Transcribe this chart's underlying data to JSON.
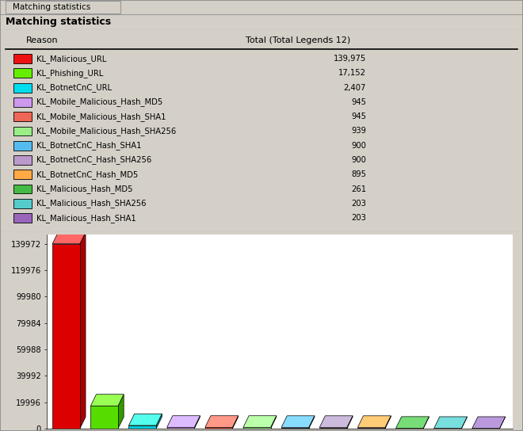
{
  "title": "Matching statistics",
  "tab_title": "Matching statistics",
  "panel_title": "Matching statistics",
  "table_header": [
    "Reason",
    "Total (Total Legends 12)"
  ],
  "categories": [
    "KL_Malicious_URL",
    "KL_Phishing_URL",
    "KL_BotnetCnC_URL",
    "KL_Mobile_Malicious_Hash_MD5",
    "KL_Mobile_Malicious_Hash_SHA1",
    "KL_Mobile_Malicious_Hash_SHA256",
    "KL_BotnetCnC_Hash_SHA1",
    "KL_BotnetCnC_Hash_SHA256",
    "KL_BotnetCnC_Hash_MD5",
    "KL_Malicious_Hash_MD5",
    "KL_Malicious_Hash_SHA256",
    "KL_Malicious_Hash_SHA1"
  ],
  "values": [
    139975,
    17152,
    2407,
    945,
    945,
    939,
    900,
    900,
    895,
    261,
    203,
    203
  ],
  "legend_colors": [
    "#EE1111",
    "#66EE00",
    "#00DDEE",
    "#CC99EE",
    "#EE6655",
    "#99EE88",
    "#55BBEE",
    "#BB99CC",
    "#FFAA44",
    "#44BB44",
    "#55CCCC",
    "#9966BB"
  ],
  "bar_colors_front": [
    "#DD0000",
    "#55DD00",
    "#00CCDD",
    "#BB88DD",
    "#DD5544",
    "#88DD77",
    "#44AADD",
    "#AA88BB",
    "#EE9933",
    "#33AA33",
    "#44BBBB",
    "#8855AA"
  ],
  "bar_colors_top": [
    "#FF6666",
    "#99FF55",
    "#55FFEE",
    "#DDBBFF",
    "#FF9988",
    "#BBFFAA",
    "#88DDFF",
    "#CCBBDD",
    "#FFCC77",
    "#77DD77",
    "#77DDDD",
    "#BB99DD"
  ],
  "bar_colors_side": [
    "#AA0000",
    "#339900",
    "#009999",
    "#886699",
    "#993333",
    "#559944",
    "#226688",
    "#776688",
    "#AA6611",
    "#227722",
    "#228888",
    "#553377"
  ],
  "yticks": [
    0,
    19996,
    39992,
    59988,
    79984,
    99980,
    119976,
    139972
  ],
  "ymax": 147000,
  "bg_color": "#FFFFFF",
  "window_bg": "#D4D0C8",
  "border_color": "#808080"
}
